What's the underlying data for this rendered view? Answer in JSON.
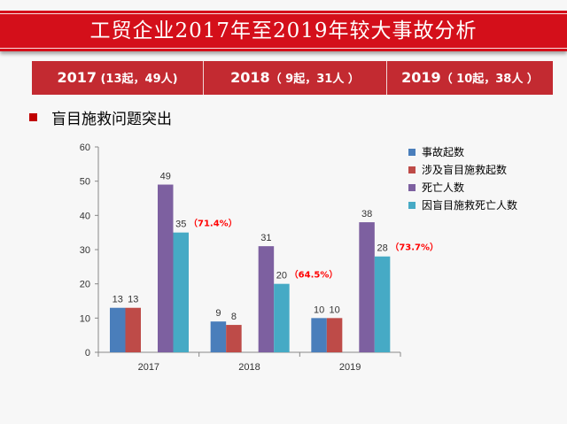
{
  "title": "工贸企业2017年至2019年较大事故分析",
  "year_cells": [
    {
      "year": "2017",
      "detail": " (13起，49人)"
    },
    {
      "year": "2018",
      "detail": "（ 9起，31人 ）"
    },
    {
      "year": "2019",
      "detail": "（ 10起，38人 ）"
    }
  ],
  "bullet": {
    "text": "盲目施救问题突出"
  },
  "colors": {
    "title_red": "#d40f1a",
    "year_row_red": "#c32a31",
    "bullet_red": "#c00000",
    "annotation_red": "#ff0000"
  },
  "chart_data": {
    "type": "bar",
    "categories": [
      "2017",
      "2018",
      "2019"
    ],
    "series": [
      {
        "name": "事故起数",
        "values": [
          13,
          9,
          10
        ],
        "color": "#4a7ebb"
      },
      {
        "name": "涉及盲目施救起数",
        "values": [
          13,
          8,
          10
        ],
        "color": "#be4b48"
      },
      {
        "name": "死亡人数",
        "values": [
          49,
          31,
          38
        ],
        "color": "#7d60a0"
      },
      {
        "name": "因盲目施救死亡人数",
        "values": [
          35,
          20,
          28
        ],
        "color": "#46aac5"
      }
    ],
    "annotations": [
      "（71.4%）",
      "（64.5%）",
      "（73.7%）"
    ],
    "ylim": [
      0,
      60
    ],
    "yticks": [
      0,
      10,
      20,
      30,
      40,
      50,
      60
    ],
    "grid": false,
    "legend_position": "right"
  }
}
